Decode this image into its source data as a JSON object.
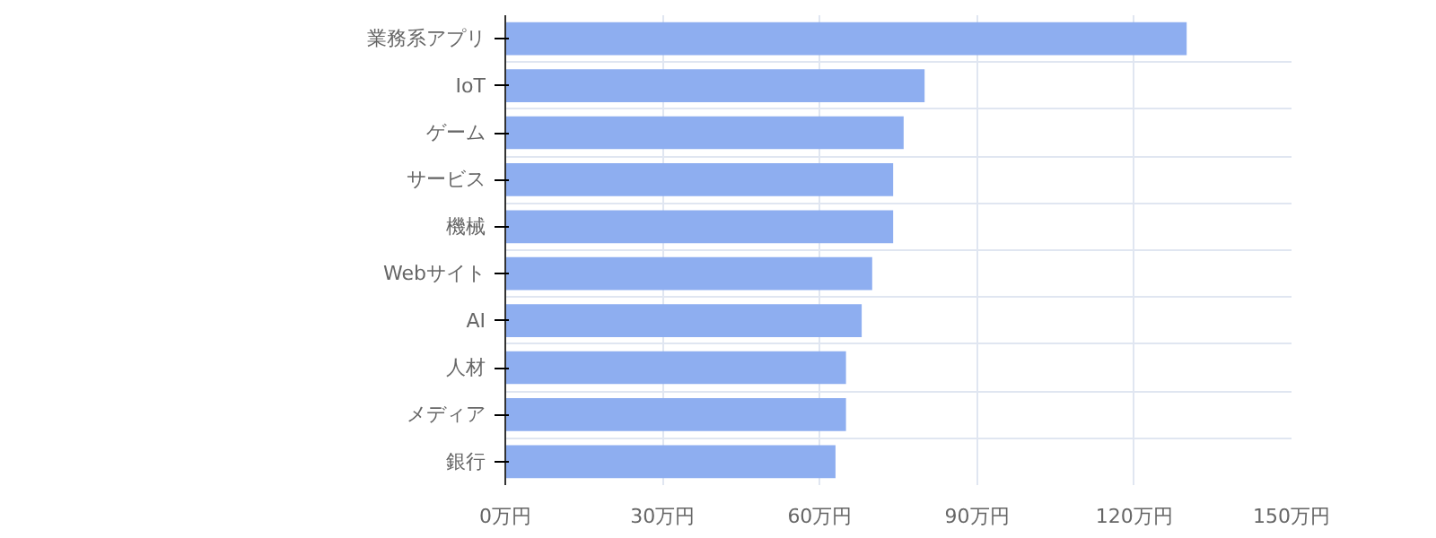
{
  "chart_data": {
    "type": "bar",
    "orientation": "horizontal",
    "categories": [
      "業務系アプリ",
      "IoT",
      "ゲーム",
      "サービス",
      "機械",
      "Webサイト",
      "AI",
      "人材",
      "メディア",
      "銀行"
    ],
    "values": [
      130,
      80,
      76,
      74,
      74,
      70,
      68,
      65,
      65,
      63
    ],
    "color": "#8eaef0",
    "xlim": [
      0,
      150
    ],
    "xticks": [
      {
        "value": 0,
        "label": "0万円"
      },
      {
        "value": 30,
        "label": "30万円"
      },
      {
        "value": 60,
        "label": "60万円"
      },
      {
        "value": 90,
        "label": "90万円"
      },
      {
        "value": 120,
        "label": "120万円"
      },
      {
        "value": 150,
        "label": "150万円"
      }
    ],
    "grid": true
  }
}
